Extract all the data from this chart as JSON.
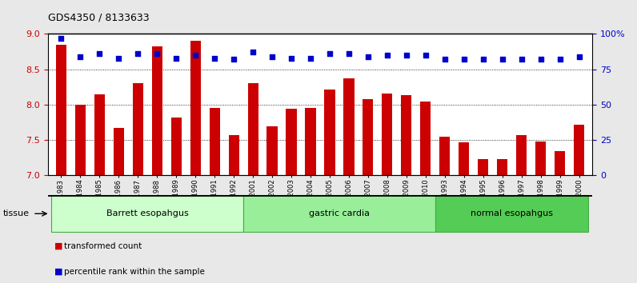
{
  "title": "GDS4350 / 8133633",
  "samples": [
    "GSM851983",
    "GSM851984",
    "GSM851985",
    "GSM851986",
    "GSM851987",
    "GSM851988",
    "GSM851989",
    "GSM851990",
    "GSM851991",
    "GSM851992",
    "GSM852001",
    "GSM852002",
    "GSM852003",
    "GSM852004",
    "GSM852005",
    "GSM852006",
    "GSM852007",
    "GSM852008",
    "GSM852009",
    "GSM852010",
    "GSM851993",
    "GSM851994",
    "GSM851995",
    "GSM851996",
    "GSM851997",
    "GSM851998",
    "GSM851999",
    "GSM852000"
  ],
  "bar_values": [
    8.85,
    8.0,
    8.15,
    7.67,
    8.3,
    8.83,
    7.82,
    8.9,
    7.95,
    7.57,
    8.31,
    7.7,
    7.94,
    7.96,
    8.22,
    8.37,
    8.08,
    8.16,
    8.14,
    8.05,
    7.55,
    7.47,
    7.23,
    7.23,
    7.57,
    7.48,
    7.35,
    7.72
  ],
  "dot_values": [
    97,
    84,
    86,
    83,
    86,
    86,
    83,
    85,
    83,
    82,
    87,
    84,
    83,
    83,
    86,
    86,
    84,
    85,
    85,
    85,
    82,
    82,
    82,
    82,
    82,
    82,
    82,
    84
  ],
  "bar_color": "#cc0000",
  "dot_color": "#0000cc",
  "ylim_left": [
    7.0,
    9.0
  ],
  "ylim_right": [
    0,
    100
  ],
  "yticks_left": [
    7.0,
    7.5,
    8.0,
    8.5,
    9.0
  ],
  "yticks_right": [
    0,
    25,
    50,
    75,
    100
  ],
  "tissue_groups": [
    {
      "label": "Barrett esopahgus",
      "start": 0,
      "end": 9,
      "color": "#ccffcc"
    },
    {
      "label": "gastric cardia",
      "start": 10,
      "end": 19,
      "color": "#99ee99"
    },
    {
      "label": "normal esopahgus",
      "start": 20,
      "end": 27,
      "color": "#55cc55"
    }
  ],
  "legend_bar_label": "transformed count",
  "legend_dot_label": "percentile rank within the sample",
  "tissue_label": "tissue",
  "bg_color": "#e8e8e8",
  "plot_bg": "#ffffff",
  "tick_label_bg": "#d0d0d0"
}
